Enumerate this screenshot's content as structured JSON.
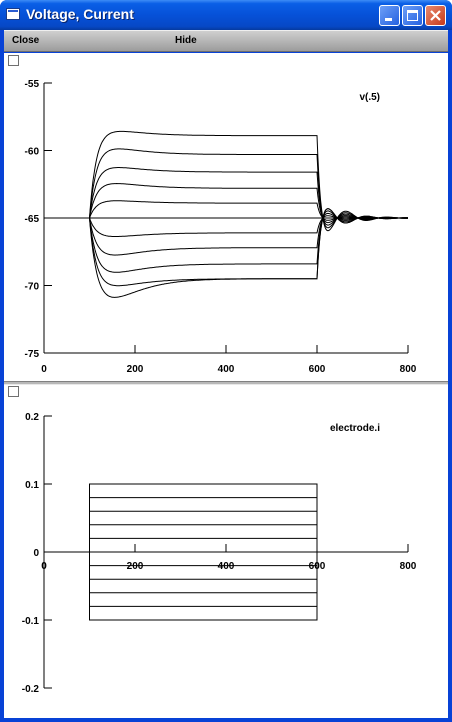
{
  "window": {
    "title": "Voltage, Current",
    "icons": {
      "app": "window-icon",
      "minimize": "minimize-icon",
      "maximize": "maximize-icon",
      "close": "close-icon"
    }
  },
  "menubar": {
    "close_label": "Close",
    "hide_label": "Hide"
  },
  "chart_data": [
    {
      "type": "line",
      "legend": "v(.5)",
      "legend_placement": "top-right",
      "xlim": [
        0,
        800
      ],
      "ylim": [
        -75,
        -55
      ],
      "x_ticks": [
        "0",
        "200",
        "400",
        "600",
        "800"
      ],
      "y_ticks": [
        "-55",
        "-60",
        "-65",
        "-70",
        "-75"
      ],
      "baseline": -65,
      "stim_start": 100,
      "stim_end": 600,
      "series": [
        {
          "peak": -58.5,
          "steady": -58.9
        },
        {
          "peak": -59.8,
          "steady": -60.3
        },
        {
          "peak": -61.2,
          "steady": -61.6
        },
        {
          "peak": -62.4,
          "steady": -62.8
        },
        {
          "peak": -63.7,
          "steady": -63.9
        },
        {
          "peak": -66.4,
          "steady": -66.1
        },
        {
          "peak": -67.8,
          "steady": -67.2
        },
        {
          "peak": -69.1,
          "steady": -68.4
        },
        {
          "peak": -70.1,
          "steady": -69.5
        },
        {
          "peak": -71.0,
          "steady": -69.5
        }
      ]
    },
    {
      "type": "line",
      "legend": "electrode.i",
      "legend_placement": "top-right",
      "xlim": [
        0,
        800
      ],
      "ylim": [
        -0.2,
        0.2
      ],
      "x_ticks": [
        "0",
        "200",
        "400",
        "600",
        "800"
      ],
      "y_ticks": [
        "0.2",
        "0.1",
        "0",
        "-0.1",
        "-0.2"
      ],
      "stim_start": 100,
      "stim_end": 600,
      "levels": [
        0.1,
        0.08,
        0.06,
        0.04,
        0.02,
        -0.02,
        -0.04,
        -0.06,
        -0.08,
        -0.1
      ]
    }
  ]
}
